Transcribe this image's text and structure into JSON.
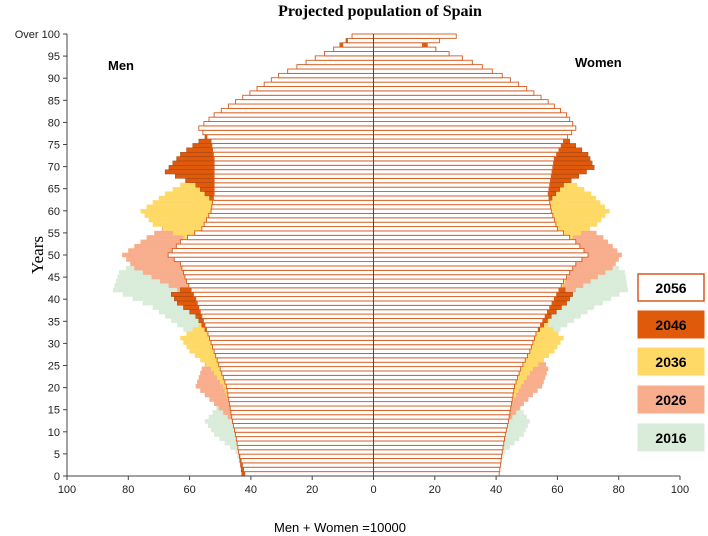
{
  "chart_data": {
    "type": "population-pyramid",
    "title": "Projected population of Spain",
    "ylabel": "Years",
    "xlabel": "Men + Women =10000",
    "left_label": "Men",
    "right_label": "Women",
    "xlim": [
      -100,
      100
    ],
    "x_ticks": [
      "100",
      "80",
      "60",
      "40",
      "20",
      "0",
      "20",
      "40",
      "60",
      "80",
      "100"
    ],
    "y_ticks": [
      "0",
      "5",
      "10",
      "15",
      "20",
      "25",
      "30",
      "35",
      "40",
      "45",
      "50",
      "55",
      "60",
      "65",
      "70",
      "75",
      "80",
      "85",
      "90",
      "95",
      "Over 100"
    ],
    "age_groups": 101,
    "legend": [
      {
        "label": "2056",
        "color": "#ffffff",
        "border": "#d65a1e"
      },
      {
        "label": "2046",
        "color": "#e05a0c",
        "border": "#e05a0c"
      },
      {
        "label": "2036",
        "color": "#ffd966",
        "border": "#ffd966"
      },
      {
        "label": "2026",
        "color": "#f8ad8c",
        "border": "#f8ad8c"
      },
      {
        "label": "2016",
        "color": "#d9ecd9",
        "border": "#d9ecd9"
      }
    ],
    "series": [
      {
        "name": "2016",
        "men_anchors": [
          [
            0,
            42
          ],
          [
            5,
            45
          ],
          [
            9,
            52
          ],
          [
            12,
            55
          ],
          [
            16,
            50
          ],
          [
            20,
            46
          ],
          [
            24,
            47
          ],
          [
            28,
            53
          ],
          [
            33,
            62
          ],
          [
            38,
            72
          ],
          [
            42,
            85
          ],
          [
            46,
            83
          ],
          [
            50,
            74
          ],
          [
            54,
            64
          ],
          [
            58,
            58
          ],
          [
            62,
            54
          ],
          [
            66,
            50
          ],
          [
            70,
            47
          ],
          [
            75,
            43
          ],
          [
            80,
            37
          ],
          [
            85,
            30
          ],
          [
            90,
            20
          ],
          [
            95,
            10
          ],
          [
            100,
            4
          ]
        ],
        "women_anchors": [
          [
            0,
            40
          ],
          [
            5,
            43
          ],
          [
            9,
            49
          ],
          [
            12,
            51
          ],
          [
            16,
            47
          ],
          [
            20,
            44
          ],
          [
            24,
            46
          ],
          [
            28,
            52
          ],
          [
            33,
            61
          ],
          [
            38,
            72
          ],
          [
            42,
            83
          ],
          [
            46,
            82
          ],
          [
            50,
            74
          ],
          [
            54,
            66
          ],
          [
            58,
            61
          ],
          [
            62,
            58
          ],
          [
            66,
            56
          ],
          [
            70,
            54
          ],
          [
            75,
            51
          ],
          [
            80,
            47
          ],
          [
            85,
            40
          ],
          [
            90,
            29
          ],
          [
            95,
            15
          ],
          [
            100,
            5
          ]
        ]
      },
      {
        "name": "2026",
        "men_anchors": [
          [
            0,
            40
          ],
          [
            5,
            42
          ],
          [
            9,
            44
          ],
          [
            12,
            46
          ],
          [
            16,
            52
          ],
          [
            20,
            58
          ],
          [
            24,
            56
          ],
          [
            28,
            52
          ],
          [
            33,
            54
          ],
          [
            38,
            58
          ],
          [
            42,
            64
          ],
          [
            47,
            78
          ],
          [
            50,
            82
          ],
          [
            54,
            74
          ],
          [
            58,
            64
          ],
          [
            62,
            57
          ],
          [
            66,
            53
          ],
          [
            70,
            50
          ],
          [
            75,
            47
          ],
          [
            80,
            42
          ],
          [
            85,
            34
          ],
          [
            90,
            24
          ],
          [
            95,
            12
          ],
          [
            100,
            5
          ]
        ],
        "women_anchors": [
          [
            0,
            39
          ],
          [
            5,
            40
          ],
          [
            9,
            42
          ],
          [
            12,
            44
          ],
          [
            16,
            49
          ],
          [
            20,
            55
          ],
          [
            24,
            57
          ],
          [
            28,
            54
          ],
          [
            33,
            55
          ],
          [
            38,
            60
          ],
          [
            42,
            66
          ],
          [
            47,
            78
          ],
          [
            50,
            81
          ],
          [
            54,
            75
          ],
          [
            58,
            66
          ],
          [
            62,
            61
          ],
          [
            66,
            59
          ],
          [
            70,
            57
          ],
          [
            75,
            56
          ],
          [
            80,
            52
          ],
          [
            85,
            45
          ],
          [
            90,
            34
          ],
          [
            95,
            20
          ],
          [
            100,
            8
          ]
        ]
      },
      {
        "name": "2036",
        "men_anchors": [
          [
            0,
            41
          ],
          [
            5,
            43
          ],
          [
            9,
            44
          ],
          [
            12,
            45
          ],
          [
            16,
            47
          ],
          [
            20,
            49
          ],
          [
            24,
            53
          ],
          [
            28,
            60
          ],
          [
            31,
            63
          ],
          [
            34,
            57
          ],
          [
            38,
            56
          ],
          [
            42,
            59
          ],
          [
            46,
            62
          ],
          [
            50,
            61
          ],
          [
            54,
            62
          ],
          [
            57,
            72
          ],
          [
            60,
            76
          ],
          [
            64,
            68
          ],
          [
            68,
            58
          ],
          [
            72,
            53
          ],
          [
            76,
            51
          ],
          [
            80,
            47
          ],
          [
            85,
            38
          ],
          [
            90,
            27
          ],
          [
            95,
            14
          ],
          [
            100,
            6
          ]
        ],
        "women_anchors": [
          [
            0,
            40
          ],
          [
            5,
            41
          ],
          [
            9,
            42
          ],
          [
            12,
            43
          ],
          [
            16,
            45
          ],
          [
            20,
            48
          ],
          [
            24,
            52
          ],
          [
            28,
            59
          ],
          [
            31,
            62
          ],
          [
            34,
            57
          ],
          [
            38,
            58
          ],
          [
            42,
            61
          ],
          [
            46,
            64
          ],
          [
            50,
            64
          ],
          [
            54,
            65
          ],
          [
            57,
            73
          ],
          [
            60,
            77
          ],
          [
            64,
            71
          ],
          [
            68,
            62
          ],
          [
            72,
            58
          ],
          [
            76,
            57
          ],
          [
            80,
            55
          ],
          [
            85,
            48
          ],
          [
            90,
            37
          ],
          [
            95,
            24
          ],
          [
            100,
            10
          ]
        ]
      },
      {
        "name": "2046",
        "men_anchors": [
          [
            0,
            43
          ],
          [
            5,
            44
          ],
          [
            9,
            44
          ],
          [
            12,
            45
          ],
          [
            16,
            46
          ],
          [
            20,
            47
          ],
          [
            24,
            49
          ],
          [
            28,
            51
          ],
          [
            32,
            54
          ],
          [
            36,
            58
          ],
          [
            39,
            64
          ],
          [
            41,
            66
          ],
          [
            43,
            60
          ],
          [
            46,
            59
          ],
          [
            50,
            56
          ],
          [
            54,
            53
          ],
          [
            58,
            52
          ],
          [
            62,
            52
          ],
          [
            66,
            58
          ],
          [
            69,
            68
          ],
          [
            73,
            63
          ],
          [
            77,
            55
          ],
          [
            80,
            50
          ],
          [
            85,
            40
          ],
          [
            90,
            30
          ],
          [
            95,
            17
          ],
          [
            100,
            7
          ]
        ],
        "women_anchors": [
          [
            0,
            41
          ],
          [
            5,
            42
          ],
          [
            9,
            42
          ],
          [
            12,
            43
          ],
          [
            16,
            44
          ],
          [
            20,
            45
          ],
          [
            24,
            47
          ],
          [
            28,
            50
          ],
          [
            32,
            53
          ],
          [
            36,
            58
          ],
          [
            39,
            63
          ],
          [
            41,
            65
          ],
          [
            43,
            60
          ],
          [
            46,
            59
          ],
          [
            50,
            57
          ],
          [
            54,
            55
          ],
          [
            58,
            55
          ],
          [
            62,
            57
          ],
          [
            66,
            62
          ],
          [
            70,
            72
          ],
          [
            73,
            70
          ],
          [
            77,
            62
          ],
          [
            80,
            58
          ],
          [
            85,
            49
          ],
          [
            90,
            39
          ],
          [
            95,
            26
          ],
          [
            100,
            12
          ]
        ]
      },
      {
        "name": "2056",
        "men_anchors": [
          [
            0,
            42
          ],
          [
            5,
            44
          ],
          [
            9,
            45
          ],
          [
            12,
            46
          ],
          [
            16,
            47
          ],
          [
            20,
            48
          ],
          [
            24,
            50
          ],
          [
            28,
            52
          ],
          [
            32,
            54
          ],
          [
            36,
            56
          ],
          [
            40,
            58
          ],
          [
            44,
            61
          ],
          [
            48,
            63
          ],
          [
            50,
            67
          ],
          [
            53,
            63
          ],
          [
            56,
            56
          ],
          [
            60,
            53
          ],
          [
            64,
            52
          ],
          [
            68,
            52
          ],
          [
            72,
            52
          ],
          [
            76,
            53
          ],
          [
            79,
            57
          ],
          [
            82,
            52
          ],
          [
            85,
            45
          ],
          [
            88,
            38
          ],
          [
            91,
            31
          ],
          [
            95,
            19
          ],
          [
            98,
            10
          ],
          [
            100,
            7
          ]
        ],
        "women_anchors": [
          [
            0,
            41
          ],
          [
            5,
            42
          ],
          [
            9,
            43
          ],
          [
            12,
            44
          ],
          [
            16,
            45
          ],
          [
            20,
            46
          ],
          [
            24,
            48
          ],
          [
            28,
            51
          ],
          [
            32,
            53
          ],
          [
            36,
            56
          ],
          [
            40,
            59
          ],
          [
            44,
            62
          ],
          [
            48,
            66
          ],
          [
            50,
            70
          ],
          [
            53,
            66
          ],
          [
            56,
            60
          ],
          [
            60,
            58
          ],
          [
            64,
            57
          ],
          [
            68,
            58
          ],
          [
            72,
            59
          ],
          [
            76,
            62
          ],
          [
            79,
            66
          ],
          [
            82,
            63
          ],
          [
            85,
            57
          ],
          [
            88,
            50
          ],
          [
            91,
            42
          ],
          [
            95,
            29
          ],
          [
            98,
            16
          ],
          [
            100,
            27
          ]
        ]
      }
    ]
  }
}
